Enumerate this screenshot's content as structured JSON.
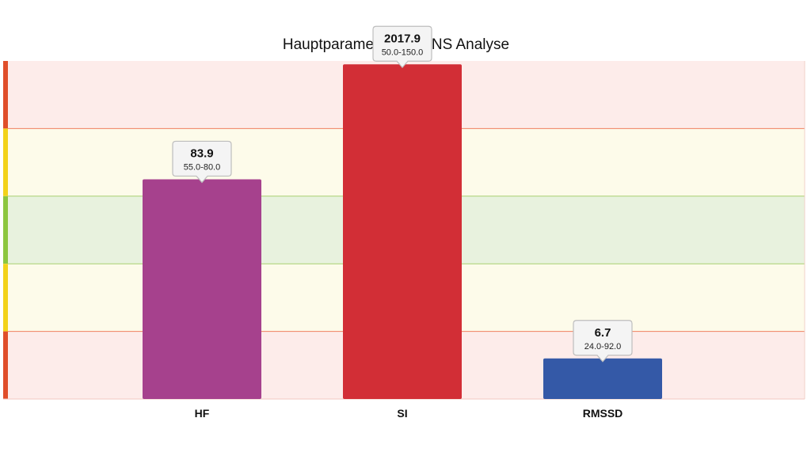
{
  "chart_data": {
    "type": "bar",
    "title": "Hauptparameter der VNS Analyse",
    "categories": [
      "HF",
      "SI",
      "RMSSD"
    ],
    "values": [
      "83.9",
      "2017.9",
      "6.7"
    ],
    "ranges": [
      "55.0-80.0",
      "50.0-150.0",
      "24.0-92.0"
    ],
    "bar_level": [
      0.65,
      0.99,
      0.12
    ],
    "zone_colors": {
      "red_band": "#fdecea",
      "yellow_band": "#fdfbea",
      "green_band": "#e8f2de",
      "red_marker": "#e04e2a",
      "yellow_marker": "#f2d21a",
      "green_marker": "#8cc63f",
      "red_line": "#f08060",
      "green_line": "#a8d070"
    },
    "bar_colors": [
      "#a6418d",
      "#d22e36",
      "#3459a7"
    ],
    "grid": true,
    "legend": "none"
  }
}
